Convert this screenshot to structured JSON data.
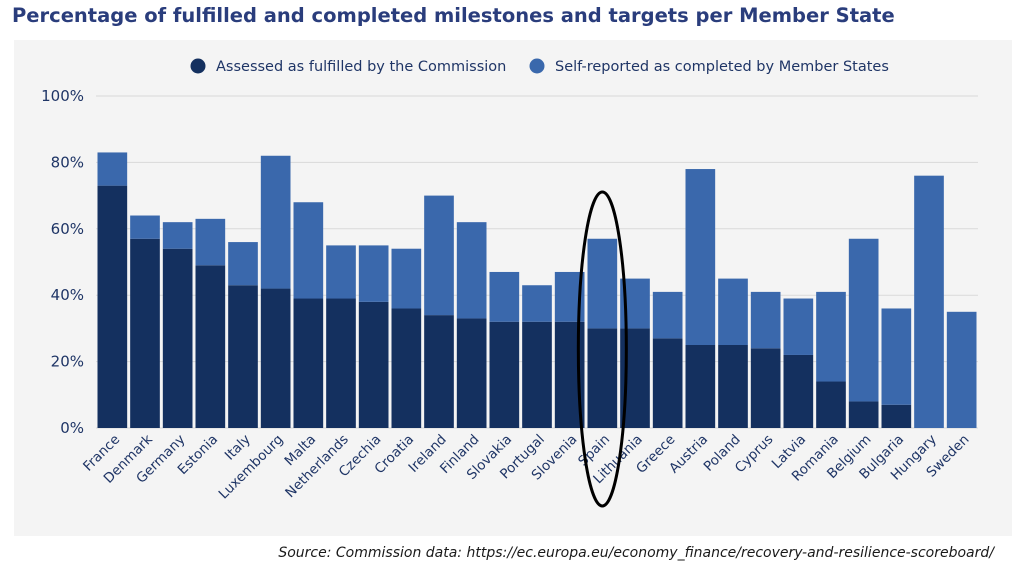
{
  "colors": {
    "fulfilled": "#14305f",
    "self_reported": "#3a68ac",
    "title": "#2a3d7c",
    "axis_text": "#1f3566",
    "grid": "#d9d9d9",
    "annotation": "#000000"
  },
  "source_text": "Source: Commission data: https://ec.europa.eu/economy_finance/recovery-and-resilience-scoreboard/",
  "chart_data": {
    "type": "bar",
    "stacked": true,
    "title": "Percentage of fulfilled and completed milestones and targets per Member State",
    "xlabel": "",
    "ylabel": "",
    "ylim": [
      0,
      100
    ],
    "yticks": [
      0,
      20,
      40,
      60,
      80,
      100
    ],
    "ytick_labels": [
      "0%",
      "20%",
      "40%",
      "60%",
      "80%",
      "100%"
    ],
    "legend_position": "top-center",
    "grid": true,
    "categories": [
      "France",
      "Denmark",
      "Germany",
      "Estonia",
      "Italy",
      "Luxembourg",
      "Malta",
      "Netherlands",
      "Czechia",
      "Croatia",
      "Ireland",
      "Finland",
      "Slovakia",
      "Portugal",
      "Slovenia",
      "Spain",
      "Lithuania",
      "Greece",
      "Austria",
      "Poland",
      "Cyprus",
      "Latvia",
      "Romania",
      "Belgium",
      "Bulgaria",
      "Hungary",
      "Sweden"
    ],
    "series": [
      {
        "name": "Assessed as fulfilled by the Commission",
        "values": [
          73,
          57,
          54,
          49,
          43,
          42,
          39,
          39,
          38,
          36,
          34,
          33,
          32,
          32,
          32,
          30,
          30,
          27,
          25,
          25,
          24,
          22,
          14,
          8,
          7,
          0,
          0
        ]
      },
      {
        "name": "Self-reported as completed by Member States",
        "values": [
          10,
          7,
          8,
          14,
          13,
          40,
          29,
          16,
          17,
          18,
          36,
          29,
          15,
          11,
          15,
          27,
          15,
          14,
          53,
          20,
          17,
          17,
          27,
          49,
          29,
          76,
          35
        ]
      }
    ],
    "annotations": [
      {
        "type": "ellipse",
        "target_category": "Spain"
      }
    ]
  }
}
